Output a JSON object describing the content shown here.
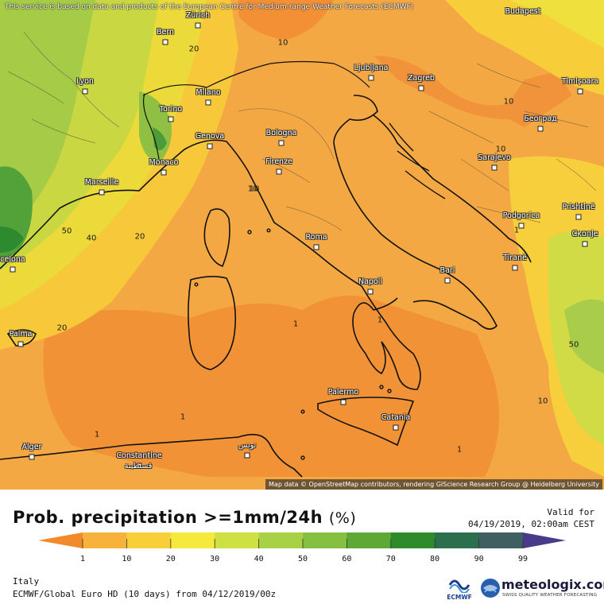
{
  "header": {
    "disclaimer": "This service is based on data and products of the European Centre for Medium-range Weather Forecasts (ECMWF)"
  },
  "map": {
    "attribution": "Map data © OpenStreetMap contributors, rendering GIScience Research Group @ Heidelberg University",
    "cities": [
      {
        "id": "budapest",
        "label": "Budapest"
      },
      {
        "id": "zurich",
        "label": "Zürich"
      },
      {
        "id": "bern",
        "label": "Bern"
      },
      {
        "id": "lyon",
        "label": "Lyon"
      },
      {
        "id": "milano",
        "label": "Milano"
      },
      {
        "id": "torino",
        "label": "Torino"
      },
      {
        "id": "genova",
        "label": "Genova"
      },
      {
        "id": "monaco",
        "label": "Monaco"
      },
      {
        "id": "marseille",
        "label": "Marseille"
      },
      {
        "id": "bologna",
        "label": "Bologna"
      },
      {
        "id": "firenze",
        "label": "Firenze"
      },
      {
        "id": "ljubljana",
        "label": "Ljubljana"
      },
      {
        "id": "zagreb",
        "label": "Zagreb"
      },
      {
        "id": "timisoara",
        "label": "Timișoara"
      },
      {
        "id": "beograd",
        "label": "Београд"
      },
      {
        "id": "sarajevo",
        "label": "Sarajevo"
      },
      {
        "id": "podgorica",
        "label": "Podgorica"
      },
      {
        "id": "prishtine",
        "label": "Prishtinë"
      },
      {
        "id": "skopje",
        "label": "Скопје"
      },
      {
        "id": "tirane",
        "label": "Tiranë"
      },
      {
        "id": "roma",
        "label": "Roma"
      },
      {
        "id": "napoli",
        "label": "Napoli"
      },
      {
        "id": "bari",
        "label": "Bari"
      },
      {
        "id": "barcelona",
        "label": "celona"
      },
      {
        "id": "palma",
        "label": "Palma"
      },
      {
        "id": "palermo",
        "label": "Palermo"
      },
      {
        "id": "catania",
        "label": "Catania"
      },
      {
        "id": "alger",
        "label": "Alger"
      },
      {
        "id": "constantine",
        "label": "Constantine"
      },
      {
        "id": "constantine_ar",
        "label": "قسنطينة"
      },
      {
        "id": "tunis",
        "label": "تونس"
      }
    ],
    "contour_labels": [
      "10",
      "20",
      "10",
      "10",
      "10",
      "50",
      "40",
      "20",
      "10",
      "1",
      "1",
      "20",
      "1",
      "1",
      "1",
      "50",
      "10",
      "1"
    ]
  },
  "footer": {
    "title": "Prob. precipitation >=1mm/24h",
    "unit": "(%)",
    "valid_label": "Valid for",
    "valid_date": "04/19/2019, 02:00am CEST",
    "region": "Italy",
    "model": "ECMWF/Global Euro HD (10 days) from 04/12/2019/00z",
    "ecmwf_logo_text": "ECMWF",
    "brand_name": "meteologix.com",
    "brand_tagline": "SWISS QUALITY WEATHER FORECASTING"
  },
  "legend": {
    "ticks": [
      "1",
      "10",
      "20",
      "30",
      "40",
      "50",
      "60",
      "70",
      "80",
      "90",
      "99"
    ],
    "colors": [
      "#f28a2a",
      "#f6b23a",
      "#f8cf38",
      "#f5ea3c",
      "#cfe043",
      "#a8d145",
      "#85c041",
      "#5ea836",
      "#2f8a2c",
      "#2c6f4e",
      "#3f5f63",
      "#4a3b8a"
    ]
  }
}
